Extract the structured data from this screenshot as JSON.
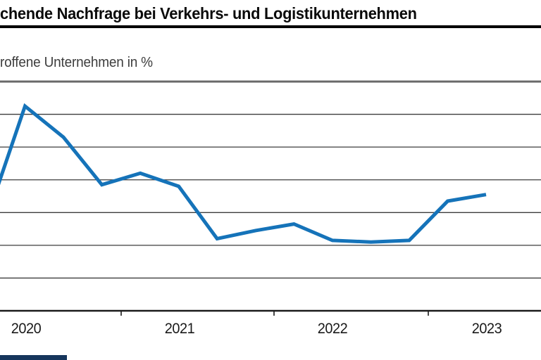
{
  "header": {
    "title": "chende Nachfrage bei Verkehrs- und Logistikunternehmen",
    "subtitle": "roffene Unternehmen in %"
  },
  "x_axis": {
    "labels": [
      "2020",
      "2021",
      "2022",
      "2023"
    ]
  },
  "chart_data": {
    "type": "line",
    "title": "chende Nachfrage bei Verkehrs- und Logistikunternehmen",
    "subtitle": "roffene Unternehmen in %",
    "x": [
      "2020Q1",
      "2020Q2",
      "2020Q3",
      "2020Q4",
      "2021Q1",
      "2021Q2",
      "2021Q3",
      "2021Q4",
      "2022Q1",
      "2022Q2",
      "2022Q3",
      "2022Q4",
      "2023Q1",
      "2023Q2"
    ],
    "values": [
      28,
      62.5,
      53,
      38.5,
      42,
      38,
      22,
      24.5,
      26.5,
      21.5,
      21,
      21.5,
      33.5,
      35.5
    ],
    "xtick_labels": [
      "2020",
      "2021",
      "2022",
      "2023"
    ],
    "ylim": [
      0,
      70
    ],
    "grid_step": 10,
    "grid": true,
    "y_tick_labels_visible": false,
    "legend": false
  },
  "colors": {
    "line": "#1573b9",
    "grid": "#3c3c3c",
    "top_frame": "#696969",
    "axis": "#1a1a1a",
    "title_rule": "#000000",
    "logo_bar": "#16365c"
  }
}
